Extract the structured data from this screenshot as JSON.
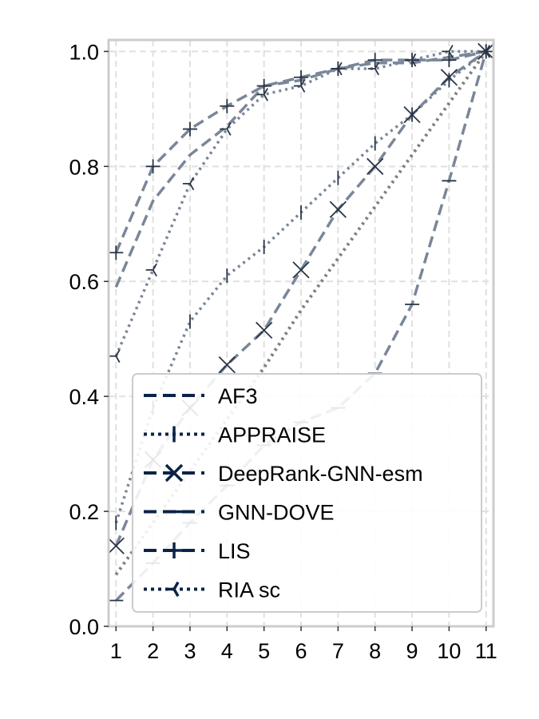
{
  "chart_data": {
    "type": "line",
    "x": [
      1,
      2,
      3,
      4,
      5,
      6,
      7,
      8,
      9,
      10,
      11
    ],
    "xticks": [
      "1",
      "2",
      "3",
      "4",
      "5",
      "6",
      "7",
      "8",
      "9",
      "10",
      "11"
    ],
    "yticks": [
      "0.0",
      "0.2",
      "0.4",
      "0.6",
      "0.8",
      "1.0"
    ],
    "xlim": [
      0.8,
      11.2
    ],
    "ylim": [
      0.0,
      1.02
    ],
    "grid": true,
    "legend_position": "lower-right",
    "colors": {
      "series": "#7a8699",
      "legend": "#0b2347",
      "random_baseline": "#808080",
      "grid": "#e0e0e0",
      "frame": "#cccccc"
    },
    "series": [
      {
        "name": "AF3",
        "linestyle": "dashed",
        "marker": "none",
        "values": [
          0.59,
          0.74,
          0.82,
          0.87,
          0.94,
          0.95,
          0.97,
          0.98,
          0.98,
          0.99,
          1.0
        ]
      },
      {
        "name": "APPRAISE",
        "linestyle": "dotted",
        "marker": "vline",
        "values": [
          0.18,
          0.38,
          0.53,
          0.61,
          0.66,
          0.72,
          0.78,
          0.84,
          0.89,
          0.95,
          1.0
        ]
      },
      {
        "name": "DeepRank-GNN-esm",
        "linestyle": "dashed",
        "marker": "x",
        "values": [
          0.14,
          0.29,
          0.38,
          0.455,
          0.515,
          0.62,
          0.725,
          0.8,
          0.89,
          0.955,
          1.0
        ]
      },
      {
        "name": "GNN-DOVE",
        "linestyle": "dashed",
        "marker": "hline",
        "values": [
          0.045,
          0.11,
          0.18,
          0.245,
          0.315,
          0.355,
          0.38,
          0.44,
          0.56,
          0.775,
          1.0
        ]
      },
      {
        "name": "LIS",
        "linestyle": "dashed",
        "marker": "plus",
        "values": [
          0.65,
          0.8,
          0.865,
          0.905,
          0.94,
          0.955,
          0.97,
          0.985,
          0.985,
          0.985,
          1.0
        ]
      },
      {
        "name": "RIA sc",
        "linestyle": "dotted",
        "marker": "tri",
        "values": [
          0.47,
          0.62,
          0.77,
          0.865,
          0.925,
          0.94,
          0.97,
          0.97,
          0.985,
          1.0,
          1.0
        ]
      }
    ],
    "random_baseline": {
      "linestyle": "dotted",
      "values": [
        0.09,
        0.18,
        0.27,
        0.36,
        0.45,
        0.55,
        0.64,
        0.73,
        0.82,
        0.91,
        1.0
      ]
    }
  }
}
